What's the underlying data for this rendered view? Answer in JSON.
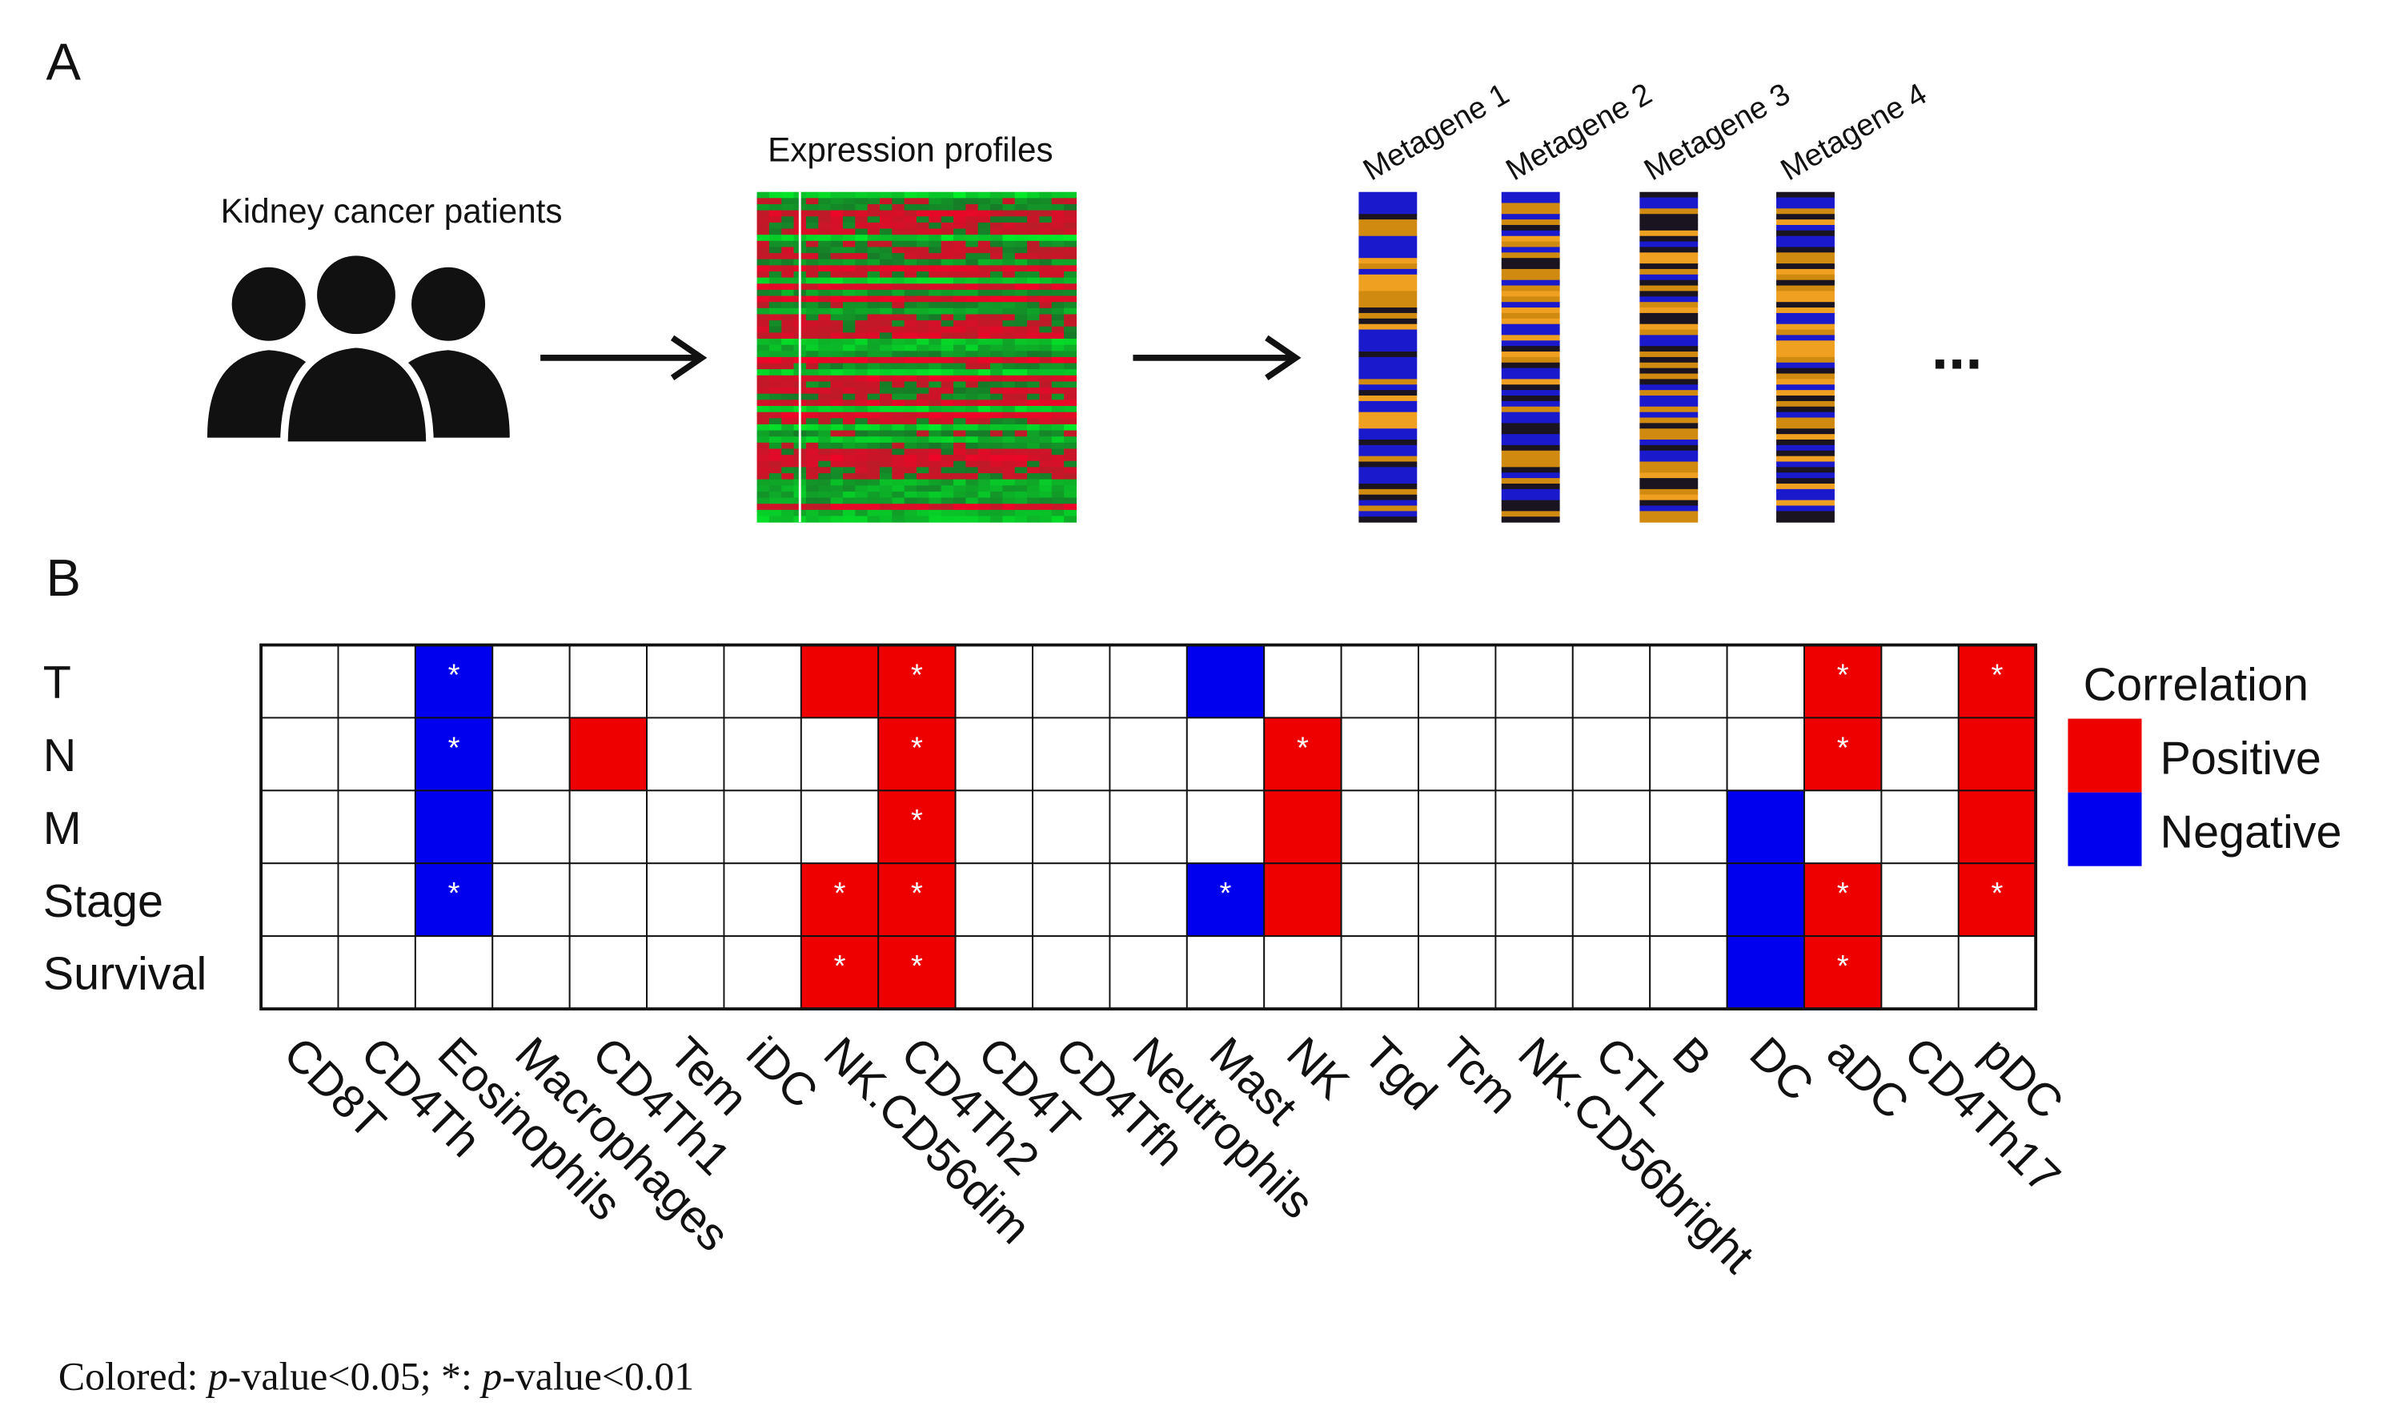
{
  "panel_a": {
    "label": "A",
    "patients_label": "Kidney cancer patients",
    "expression_label": "Expression profiles",
    "metagenes": [
      "Metagene 1",
      "Metagene 2",
      "Metagene 3",
      "Metagene 4"
    ],
    "ellipsis": "..."
  },
  "panel_b": {
    "label": "B",
    "rows": [
      "T",
      "N",
      "M",
      "Stage",
      "Survival"
    ],
    "columns": [
      "CD8T",
      "CD4Th",
      "Eosinophils",
      "Macrophages",
      "CD4Th1",
      "Tem",
      "iDC",
      "NK.CD56dim",
      "CD4Th2",
      "CD4T",
      "CD4Tfh",
      "Neutrophils",
      "Mast",
      "NK",
      "Tgd",
      "Tcm",
      "NK.CD56bright",
      "CTL",
      "B",
      "DC",
      "aDC",
      "CD4Th17",
      "pDC"
    ],
    "correlation": [
      [
        0,
        0,
        -1,
        0,
        0,
        0,
        0,
        1,
        1,
        0,
        0,
        0,
        -1,
        0,
        0,
        0,
        0,
        0,
        0,
        0,
        1,
        0,
        1
      ],
      [
        0,
        0,
        -1,
        0,
        1,
        0,
        0,
        0,
        1,
        0,
        0,
        0,
        0,
        1,
        0,
        0,
        0,
        0,
        0,
        0,
        1,
        0,
        1
      ],
      [
        0,
        0,
        -1,
        0,
        0,
        0,
        0,
        0,
        1,
        0,
        0,
        0,
        0,
        1,
        0,
        0,
        0,
        0,
        0,
        -1,
        0,
        0,
        1
      ],
      [
        0,
        0,
        -1,
        0,
        0,
        0,
        0,
        1,
        1,
        0,
        0,
        0,
        -1,
        1,
        0,
        0,
        0,
        0,
        0,
        -1,
        1,
        0,
        1
      ],
      [
        0,
        0,
        0,
        0,
        0,
        0,
        0,
        1,
        1,
        0,
        0,
        0,
        0,
        0,
        0,
        0,
        0,
        0,
        0,
        -1,
        1,
        0,
        0
      ]
    ],
    "significant": [
      [
        false,
        false,
        true,
        false,
        false,
        false,
        false,
        false,
        true,
        false,
        false,
        false,
        false,
        false,
        false,
        false,
        false,
        false,
        false,
        false,
        true,
        false,
        true
      ],
      [
        false,
        false,
        true,
        false,
        false,
        false,
        false,
        false,
        true,
        false,
        false,
        false,
        false,
        true,
        false,
        false,
        false,
        false,
        false,
        false,
        true,
        false,
        false
      ],
      [
        false,
        false,
        false,
        false,
        false,
        false,
        false,
        false,
        true,
        false,
        false,
        false,
        false,
        false,
        false,
        false,
        false,
        false,
        false,
        false,
        false,
        false,
        false
      ],
      [
        false,
        false,
        true,
        false,
        false,
        false,
        false,
        true,
        true,
        false,
        false,
        false,
        true,
        false,
        false,
        false,
        false,
        false,
        false,
        false,
        true,
        false,
        true
      ],
      [
        false,
        false,
        false,
        false,
        false,
        false,
        false,
        true,
        true,
        false,
        false,
        false,
        false,
        false,
        false,
        false,
        false,
        false,
        false,
        false,
        true,
        false,
        false
      ]
    ],
    "star_symbol": "*",
    "legend": {
      "title": "Correlation",
      "positive": {
        "label": "Positive",
        "color": "#ee0000"
      },
      "negative": {
        "label": "Negative",
        "color": "#0000ee"
      }
    },
    "footnote": [
      "Colored: ",
      "p",
      "-value<0.05; *: ",
      "p",
      "-value<0.01"
    ]
  }
}
